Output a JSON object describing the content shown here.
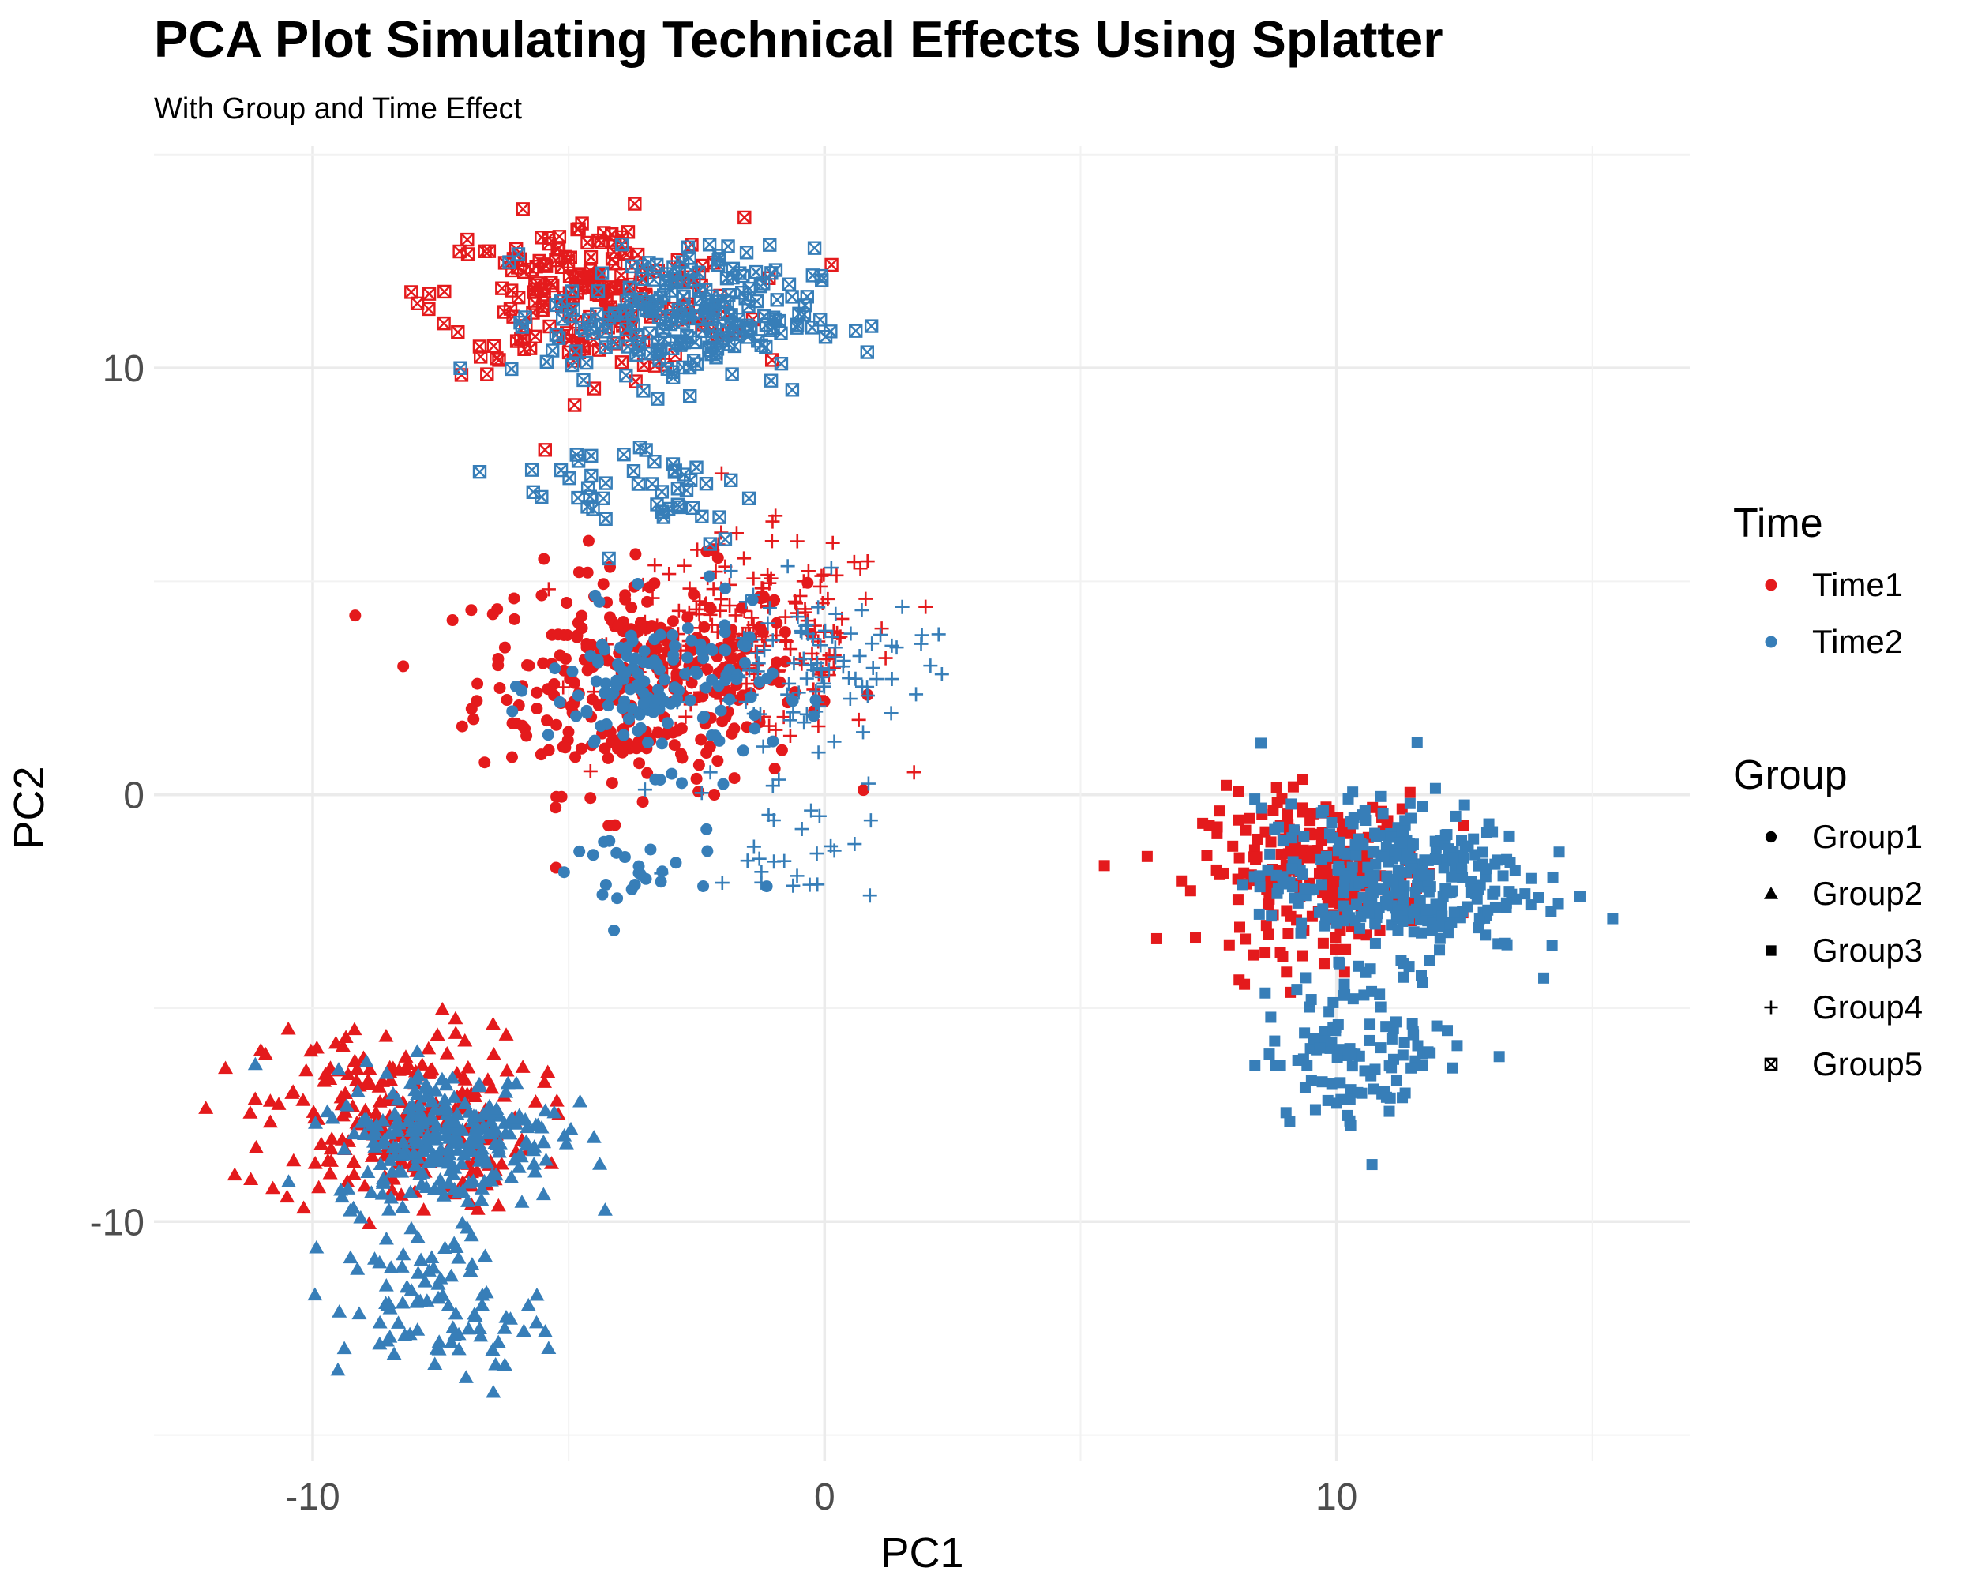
{
  "chart_data": {
    "type": "scatter",
    "title": "PCA Plot Simulating Technical Effects Using Splatter",
    "subtitle": "With Group and Time Effect",
    "xlabel": "PC1",
    "ylabel": "PC2",
    "xlim": [
      -13.1,
      16.9
    ],
    "ylim": [
      -15.6,
      15.2
    ],
    "x_ticks": [
      -10,
      0,
      10
    ],
    "x_tick_labels": [
      "-10",
      "0",
      "10"
    ],
    "y_ticks": [
      -10,
      0,
      10
    ],
    "y_tick_labels": [
      "-10",
      "0",
      "10"
    ],
    "grid": true,
    "legend_placement": "right",
    "legends": [
      {
        "title": "Time",
        "entries": [
          {
            "label": "Time1",
            "color": "#e41a1c",
            "shape": "circle"
          },
          {
            "label": "Time2",
            "color": "#377eb8",
            "shape": "circle"
          }
        ]
      },
      {
        "title": "Group",
        "entries": [
          {
            "label": "Group1",
            "shape": "circle"
          },
          {
            "label": "Group2",
            "shape": "triangle"
          },
          {
            "label": "Group3",
            "shape": "square"
          },
          {
            "label": "Group4",
            "shape": "plus"
          },
          {
            "label": "Group5",
            "shape": "boxed-x"
          }
        ]
      }
    ],
    "colors": {
      "Time1": "#e41a1c",
      "Time2": "#377eb8"
    },
    "clusters": [
      {
        "group": "Group1",
        "time": "Time1",
        "shape": "circle",
        "n": 300,
        "center": [
          -3.6,
          2.7
        ],
        "sd": [
          1.6,
          1.3
        ]
      },
      {
        "group": "Group1",
        "time": "Time2",
        "shape": "circle",
        "n": 150,
        "center": [
          -3.2,
          2.5
        ],
        "sd": [
          1.1,
          0.9
        ]
      },
      {
        "group": "Group1",
        "time": "Time2",
        "shape": "circle",
        "n": 25,
        "center": [
          -3.8,
          -1.9
        ],
        "sd": [
          0.9,
          0.6
        ]
      },
      {
        "group": "Group4",
        "time": "Time1",
        "shape": "plus",
        "n": 170,
        "center": [
          -1.4,
          3.6
        ],
        "sd": [
          1.4,
          1.2
        ]
      },
      {
        "group": "Group4",
        "time": "Time2",
        "shape": "plus",
        "n": 90,
        "center": [
          -0.2,
          3.0
        ],
        "sd": [
          1.1,
          0.9
        ]
      },
      {
        "group": "Group4",
        "time": "Time2",
        "shape": "plus",
        "n": 30,
        "center": [
          -0.8,
          -0.9
        ],
        "sd": [
          0.9,
          0.8
        ]
      },
      {
        "group": "Group5",
        "time": "Time1",
        "shape": "boxed-x",
        "n": 210,
        "center": [
          -4.6,
          11.7
        ],
        "sd": [
          1.5,
          0.9
        ]
      },
      {
        "group": "Group5",
        "time": "Time2",
        "shape": "boxed-x",
        "n": 230,
        "center": [
          -2.8,
          11.2
        ],
        "sd": [
          1.3,
          0.8
        ]
      },
      {
        "group": "Group5",
        "time": "Time2",
        "shape": "boxed-x",
        "n": 50,
        "center": [
          -3.6,
          7.2
        ],
        "sd": [
          1.2,
          0.7
        ]
      },
      {
        "group": "Group2",
        "time": "Time1",
        "shape": "triangle",
        "n": 240,
        "center": [
          -8.3,
          -7.6
        ],
        "sd": [
          1.3,
          1.1
        ]
      },
      {
        "group": "Group2",
        "time": "Time2",
        "shape": "triangle",
        "n": 260,
        "center": [
          -7.4,
          -8.0
        ],
        "sd": [
          1.1,
          0.8
        ]
      },
      {
        "group": "Group2",
        "time": "Time2",
        "shape": "triangle",
        "n": 90,
        "center": [
          -7.5,
          -12.0
        ],
        "sd": [
          1.0,
          0.9
        ]
      },
      {
        "group": "Group3",
        "time": "Time1",
        "shape": "square",
        "n": 230,
        "center": [
          9.6,
          -1.8
        ],
        "sd": [
          1.1,
          0.9
        ]
      },
      {
        "group": "Group3",
        "time": "Time2",
        "shape": "square",
        "n": 330,
        "center": [
          11.1,
          -2.0
        ],
        "sd": [
          1.3,
          0.9
        ]
      },
      {
        "group": "Group3",
        "time": "Time2",
        "shape": "square",
        "n": 110,
        "center": [
          10.6,
          -5.9
        ],
        "sd": [
          1.0,
          0.9
        ]
      }
    ]
  }
}
